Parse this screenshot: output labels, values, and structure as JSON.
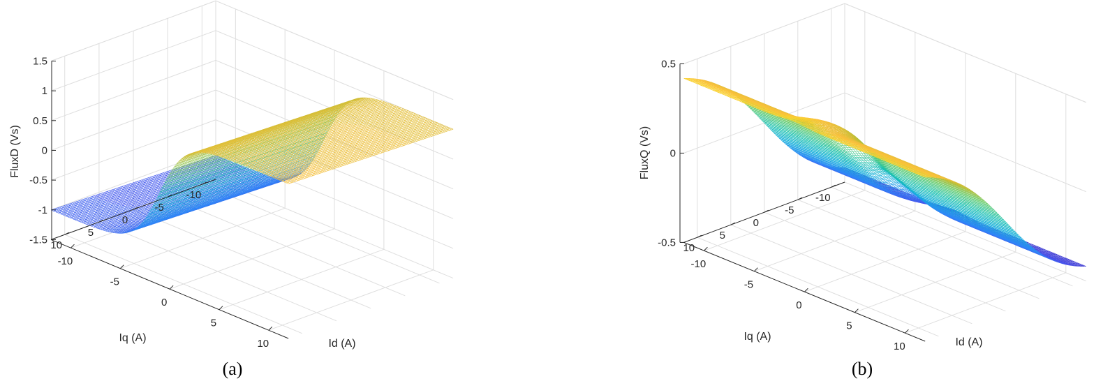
{
  "chart_data": [
    {
      "type": "surface",
      "panel_label": "(a)",
      "xlabel": "Id (A)",
      "ylabel": "Iq (A)",
      "zlabel": "FluxD (Vs)",
      "xlim": [
        -12,
        12
      ],
      "ylim": [
        -12,
        12
      ],
      "zlim": [
        -1.5,
        1.5
      ],
      "xticks": [
        -10,
        -5,
        0,
        5,
        10
      ],
      "yticks": [
        -10,
        -5,
        0,
        5,
        10
      ],
      "zticks": [
        -1.5,
        -1,
        -0.5,
        0,
        0.5,
        1,
        1.5
      ],
      "zticklabels": [
        "-1.5",
        "-1",
        "-0.5",
        "0",
        "0.5",
        "1",
        "1.5"
      ],
      "grid": true,
      "colormap": "parula",
      "surface_model": {
        "kind": "tanh_in_x",
        "center_x": -1.0,
        "width": 2.6,
        "amplitude": 1.05,
        "y_slope": 0.004
      },
      "grid_resolution": 100
    },
    {
      "type": "surface",
      "panel_label": "(b)",
      "xlabel": "Id (A)",
      "ylabel": "Iq (A)",
      "zlabel": "FluxQ (Vs)",
      "xlim": [
        -12,
        12
      ],
      "ylim": [
        -12,
        12
      ],
      "zlim": [
        -0.5,
        0.5
      ],
      "xticks": [
        -10,
        -5,
        0,
        5,
        10
      ],
      "yticks": [
        -10,
        -5,
        0,
        5,
        10
      ],
      "zticks": [
        -0.5,
        0,
        0.5
      ],
      "zticklabels": [
        "-0.5",
        "0",
        "0.5"
      ],
      "grid": true,
      "colormap": "parula",
      "surface_model": {
        "kind": "tanh_in_y_with_ridge",
        "slope": 0.31,
        "width": 9.0,
        "ridge_x": -1.0,
        "ridge_width": 1.6,
        "ridge_gain": 0.25
      },
      "grid_resolution": 100
    }
  ]
}
